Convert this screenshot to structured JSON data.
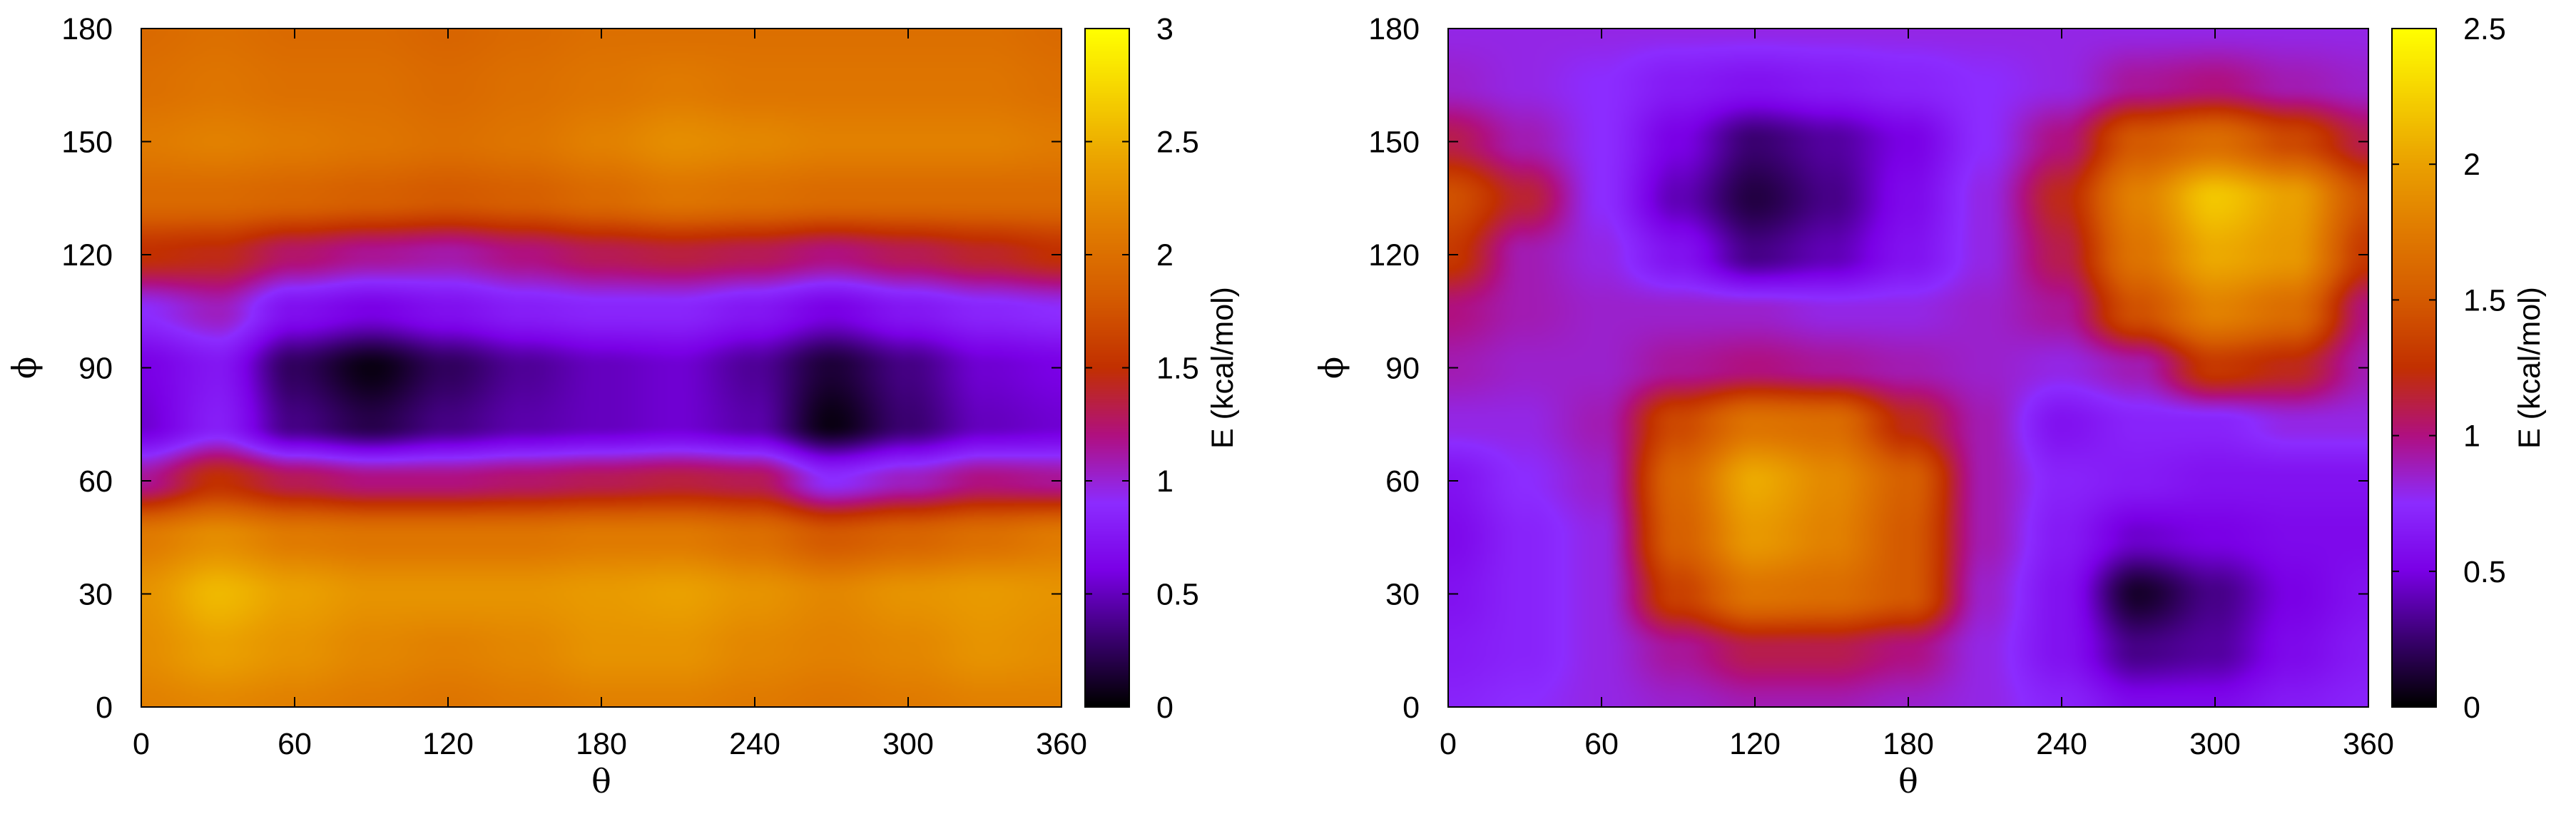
{
  "chart_data": [
    {
      "type": "heatmap",
      "xlabel": "θ",
      "ylabel": "ϕ",
      "xlim": [
        0,
        360
      ],
      "ylim": [
        0,
        180
      ],
      "xticks": [
        "0",
        "60",
        "120",
        "180",
        "240",
        "300",
        "360"
      ],
      "yticks": [
        "0",
        "30",
        "60",
        "90",
        "120",
        "150",
        "180"
      ],
      "colorbar": {
        "label": "E (kcal/mol)",
        "range": [
          0,
          3
        ],
        "ticks": [
          "0",
          "0.5",
          "1",
          "1.5",
          "2",
          "2.5",
          "3"
        ]
      },
      "colormap": [
        "#000000",
        "#3a0070",
        "#7a00e6",
        "#8c2cff",
        "#b01080",
        "#c23000",
        "#d45a00",
        "#e07a00",
        "#eaa000",
        "#f5d000",
        "#ffff00"
      ],
      "grid_x": [
        0,
        30,
        60,
        90,
        120,
        150,
        180,
        210,
        240,
        270,
        300,
        330,
        360
      ],
      "grid_y": [
        0,
        15,
        30,
        45,
        60,
        75,
        90,
        105,
        120,
        135,
        150,
        165,
        180
      ],
      "z": [
        [
          2.15,
          2.2,
          2.15,
          2.1,
          2.05,
          2.1,
          2.15,
          2.15,
          2.1,
          2.05,
          2.1,
          2.15,
          2.15
        ],
        [
          2.25,
          2.4,
          2.3,
          2.2,
          2.15,
          2.2,
          2.3,
          2.3,
          2.2,
          2.15,
          2.2,
          2.3,
          2.25
        ],
        [
          2.3,
          2.55,
          2.4,
          2.3,
          2.3,
          2.3,
          2.35,
          2.4,
          2.3,
          2.2,
          2.3,
          2.35,
          2.3
        ],
        [
          2.1,
          2.25,
          2.1,
          2.05,
          2.05,
          2.05,
          2.1,
          2.1,
          2.0,
          1.8,
          1.9,
          2.0,
          2.1
        ],
        [
          1.15,
          1.5,
          1.3,
          1.2,
          1.2,
          1.25,
          1.3,
          1.35,
          1.3,
          0.9,
          1.05,
          1.2,
          1.15
        ],
        [
          0.55,
          0.8,
          0.35,
          0.2,
          0.35,
          0.45,
          0.5,
          0.55,
          0.45,
          0.05,
          0.3,
          0.5,
          0.55
        ],
        [
          0.6,
          0.75,
          0.25,
          0.05,
          0.25,
          0.4,
          0.5,
          0.55,
          0.4,
          0.15,
          0.35,
          0.55,
          0.6
        ],
        [
          0.9,
          1.05,
          0.7,
          0.6,
          0.7,
          0.8,
          0.85,
          0.85,
          0.75,
          0.6,
          0.75,
          0.85,
          0.9
        ],
        [
          1.5,
          1.45,
          1.25,
          1.15,
          1.1,
          1.2,
          1.3,
          1.35,
          1.3,
          1.2,
          1.3,
          1.4,
          1.5
        ],
        [
          1.95,
          1.95,
          1.9,
          1.85,
          1.8,
          1.85,
          1.95,
          2.05,
          2.0,
          1.95,
          1.95,
          1.95,
          1.95
        ],
        [
          2.1,
          2.15,
          2.1,
          2.05,
          2.0,
          2.05,
          2.15,
          2.25,
          2.2,
          2.15,
          2.15,
          2.15,
          2.1
        ],
        [
          2.0,
          2.05,
          2.0,
          2.0,
          1.95,
          2.0,
          2.05,
          2.1,
          2.05,
          2.05,
          2.05,
          2.05,
          2.0
        ],
        [
          1.95,
          2.0,
          1.95,
          1.95,
          1.9,
          1.95,
          2.0,
          2.0,
          2.0,
          2.0,
          2.0,
          2.0,
          1.95
        ]
      ]
    },
    {
      "type": "heatmap",
      "xlabel": "θ",
      "ylabel": "ϕ",
      "xlim": [
        0,
        360
      ],
      "ylim": [
        0,
        180
      ],
      "xticks": [
        "0",
        "60",
        "120",
        "180",
        "240",
        "300",
        "360"
      ],
      "yticks": [
        "0",
        "30",
        "60",
        "90",
        "120",
        "150",
        "180"
      ],
      "colorbar": {
        "label": "E (kcal/mol)",
        "range": [
          0,
          2.5
        ],
        "ticks": [
          "0",
          "0.5",
          "1",
          "1.5",
          "2",
          "2.5"
        ]
      },
      "colormap": [
        "#000000",
        "#3a0070",
        "#7a00e6",
        "#8c2cff",
        "#b01080",
        "#c23000",
        "#d45a00",
        "#e07a00",
        "#eaa000",
        "#f5d000",
        "#ffff00"
      ],
      "grid_x": [
        0,
        30,
        60,
        90,
        120,
        150,
        180,
        210,
        240,
        270,
        300,
        330,
        360
      ],
      "grid_y": [
        0,
        15,
        30,
        45,
        60,
        75,
        90,
        105,
        120,
        135,
        150,
        165,
        180
      ],
      "z": [
        [
          0.7,
          0.75,
          0.8,
          0.85,
          0.9,
          0.9,
          0.85,
          0.8,
          0.7,
          0.55,
          0.55,
          0.65,
          0.7
        ],
        [
          0.65,
          0.7,
          0.8,
          0.95,
          1.1,
          1.1,
          1.0,
          0.8,
          0.6,
          0.3,
          0.35,
          0.55,
          0.65
        ],
        [
          0.6,
          0.7,
          0.8,
          1.35,
          1.7,
          1.65,
          1.5,
          0.85,
          0.6,
          0.1,
          0.3,
          0.5,
          0.6
        ],
        [
          0.55,
          0.7,
          0.8,
          1.55,
          1.95,
          1.8,
          1.5,
          0.9,
          0.65,
          0.45,
          0.5,
          0.55,
          0.55
        ],
        [
          0.6,
          0.75,
          0.85,
          1.6,
          2.05,
          1.85,
          1.55,
          0.9,
          0.7,
          0.65,
          0.6,
          0.6,
          0.6
        ],
        [
          0.8,
          0.8,
          0.9,
          1.4,
          1.7,
          1.65,
          1.2,
          0.9,
          0.6,
          0.7,
          0.7,
          0.8,
          0.8
        ],
        [
          0.9,
          0.85,
          0.85,
          0.95,
          1.0,
          0.95,
          0.9,
          0.85,
          0.8,
          0.9,
          1.3,
          1.2,
          0.9
        ],
        [
          1.0,
          0.9,
          0.85,
          0.85,
          0.85,
          0.8,
          0.8,
          0.85,
          0.95,
          1.45,
          1.8,
          1.65,
          1.0
        ],
        [
          1.3,
          0.9,
          0.8,
          0.6,
          0.3,
          0.4,
          0.6,
          0.8,
          1.1,
          1.7,
          2.05,
          1.95,
          1.3
        ],
        [
          1.45,
          1.15,
          0.75,
          0.4,
          0.15,
          0.3,
          0.55,
          0.8,
          1.2,
          1.8,
          2.2,
          2.0,
          1.45
        ],
        [
          1.1,
          0.9,
          0.75,
          0.5,
          0.25,
          0.35,
          0.5,
          0.75,
          1.0,
          1.5,
          1.65,
          1.4,
          1.1
        ],
        [
          0.85,
          0.8,
          0.75,
          0.65,
          0.6,
          0.65,
          0.7,
          0.75,
          0.8,
          0.95,
          1.0,
          0.9,
          0.85
        ],
        [
          0.8,
          0.8,
          0.8,
          0.8,
          0.8,
          0.8,
          0.8,
          0.8,
          0.8,
          0.8,
          0.8,
          0.8,
          0.8
        ]
      ]
    }
  ]
}
